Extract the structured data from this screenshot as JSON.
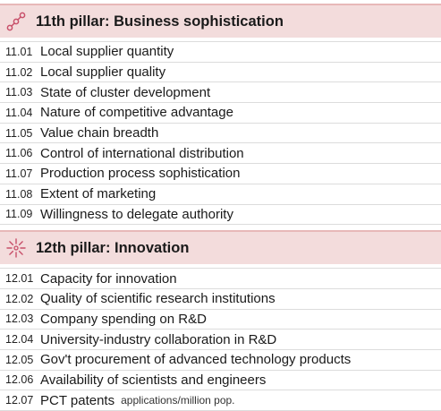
{
  "sections": [
    {
      "icon": "chain-link-icon",
      "title": "11th pillar: Business sophistication",
      "items": [
        {
          "code": "11.01",
          "label": "Local supplier quantity"
        },
        {
          "code": "11.02",
          "label": "Local supplier quality"
        },
        {
          "code": "11.03",
          "label": "State of cluster development"
        },
        {
          "code": "11.04",
          "label": "Nature of competitive advantage"
        },
        {
          "code": "11.05",
          "label": "Value chain breadth"
        },
        {
          "code": "11.06",
          "label": "Control of international distribution"
        },
        {
          "code": "11.07",
          "label": "Production process sophistication"
        },
        {
          "code": "11.08",
          "label": "Extent of marketing"
        },
        {
          "code": "11.09",
          "label": "Willingness to delegate authority"
        }
      ]
    },
    {
      "icon": "sparkle-burst-icon",
      "title": "12th pillar: Innovation",
      "items": [
        {
          "code": "12.01",
          "label": "Capacity for innovation"
        },
        {
          "code": "12.02",
          "label": "Quality of scientific research institutions"
        },
        {
          "code": "12.03",
          "label": "Company spending on R&D"
        },
        {
          "code": "12.04",
          "label": "University-industry collaboration in R&D"
        },
        {
          "code": "12.05",
          "label": "Gov't procurement of advanced technology products"
        },
        {
          "code": "12.06",
          "label": "Availability of scientists and engineers"
        },
        {
          "code": "12.07",
          "label": "PCT patents",
          "note": "applications/million pop."
        }
      ]
    }
  ],
  "colors": {
    "header_bg": "#f3dcdc",
    "header_border": "#e7b8b8",
    "icon_accent": "#c8506a"
  }
}
